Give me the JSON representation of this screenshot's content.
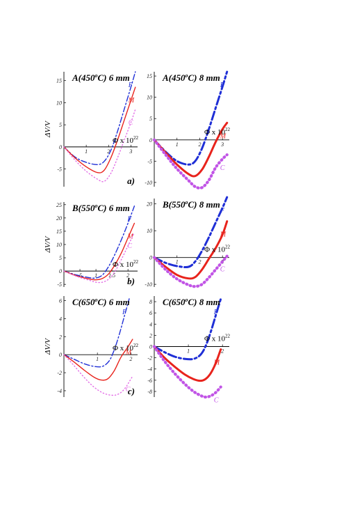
{
  "colors": {
    "F": "#1f2fd6",
    "M": "#e8231c",
    "C": "#e36ee6",
    "C_dotted": "#c155e6"
  },
  "x_axis_label": "Φ x 10",
  "x_axis_label_exp": "22",
  "chart_data": [
    {
      "type": "line",
      "row": "a)",
      "title_letter": "A",
      "title_temp": "450",
      "title_unit": "C) 6 mm",
      "ylabel": "ΔV/V",
      "xlim": [
        0,
        3.3
      ],
      "ylim": [
        -9,
        17
      ],
      "xticks": [
        1,
        2,
        3
      ],
      "yticks": [
        -5,
        0,
        5,
        10,
        15
      ],
      "series": [
        {
          "name": "F",
          "style": "dashdot",
          "x": [
            0,
            0.5,
            1,
            1.5,
            1.8,
            2.1,
            2.4,
            2.7,
            3.0,
            3.2
          ],
          "y": [
            0,
            -2.3,
            -3.5,
            -4,
            -3.3,
            -0.8,
            3.5,
            8.5,
            13.5,
            17
          ]
        },
        {
          "name": "M",
          "style": "solid",
          "x": [
            0,
            0.5,
            1,
            1.5,
            1.8,
            2.1,
            2.4,
            2.7,
            3.0,
            3.2
          ],
          "y": [
            0,
            -2.5,
            -4.5,
            -5.8,
            -5.3,
            -2.5,
            1.5,
            6,
            10.5,
            13.5
          ]
        },
        {
          "name": "C",
          "style": "dotted",
          "x": [
            0,
            0.5,
            1,
            1.5,
            1.8,
            2.1,
            2.4,
            2.7,
            3.0,
            3.2
          ],
          "y": [
            0,
            -3,
            -5.5,
            -7.3,
            -7.8,
            -6,
            -2.5,
            1.5,
            5.5,
            8.5
          ]
        }
      ]
    },
    {
      "type": "line",
      "row": "a)",
      "title_letter": "A",
      "title_temp": "450",
      "title_unit": "C) 8 mm",
      "ylabel": "",
      "xlim": [
        0,
        3.3
      ],
      "ylim": [
        -11,
        16
      ],
      "xticks": [
        1,
        2,
        3
      ],
      "yticks": [
        -10,
        -5,
        0,
        5,
        10,
        15
      ],
      "series": [
        {
          "name": "F",
          "style": "dashdot",
          "x": [
            0,
            0.5,
            1,
            1.5,
            1.8,
            2.1,
            2.4,
            2.7,
            3.0,
            3.2
          ],
          "y": [
            0,
            -2.8,
            -5,
            -5.8,
            -5,
            -2,
            2.5,
            7.5,
            12.5,
            16
          ]
        },
        {
          "name": "M",
          "style": "solid",
          "x": [
            0,
            0.5,
            1,
            1.5,
            1.8,
            2.1,
            2.4,
            2.7,
            3.0,
            3.2
          ],
          "y": [
            0,
            -3,
            -5.8,
            -8,
            -8.5,
            -7,
            -4,
            -0.5,
            2.5,
            4
          ]
        },
        {
          "name": "C",
          "style": "dotted",
          "x": [
            0,
            0.5,
            1,
            1.5,
            1.8,
            2.1,
            2.4,
            2.7,
            3.0,
            3.2
          ],
          "y": [
            0,
            -3.5,
            -6.8,
            -9.5,
            -11,
            -11.2,
            -9.5,
            -6.5,
            -4.5,
            -3.5
          ]
        }
      ]
    },
    {
      "type": "line",
      "row": "b)",
      "title_letter": "B",
      "title_temp": "550",
      "title_unit": "C) 6 mm",
      "ylabel": "ΔV/V",
      "xlim": [
        0,
        2.3
      ],
      "ylim": [
        -6,
        26
      ],
      "xticks": [
        0.5,
        1,
        1.5,
        2
      ],
      "xticklabels": [
        ".5",
        "1",
        "1.5",
        "2"
      ],
      "yticks": [
        -5,
        0,
        5,
        10,
        15,
        20,
        25
      ],
      "series": [
        {
          "name": "F",
          "style": "dashdot",
          "x": [
            0,
            0.4,
            0.8,
            1.0,
            1.2,
            1.4,
            1.6,
            1.8,
            2.0,
            2.2
          ],
          "y": [
            0,
            -1.5,
            -2.5,
            -2.6,
            -1.5,
            1.8,
            6.5,
            12,
            18,
            24.5
          ]
        },
        {
          "name": "M",
          "style": "solid",
          "x": [
            0,
            0.4,
            0.8,
            1.0,
            1.2,
            1.4,
            1.6,
            1.8,
            2.0,
            2.2
          ],
          "y": [
            0,
            -1.8,
            -3,
            -3.3,
            -2.8,
            -1,
            2.5,
            7,
            12.5,
            18
          ]
        },
        {
          "name": "C",
          "style": "dotted",
          "x": [
            0,
            0.4,
            0.8,
            1.0,
            1.2,
            1.4,
            1.6,
            1.8,
            2.0,
            2.2
          ],
          "y": [
            0,
            -2,
            -3.5,
            -4.2,
            -4.2,
            -3,
            0,
            4.5,
            9.5,
            14.5
          ]
        }
      ]
    },
    {
      "type": "line",
      "row": "b)",
      "title_letter": "B",
      "title_temp": "550",
      "title_unit": "C) 8 mm",
      "ylabel": "",
      "xlim": [
        0,
        3.3
      ],
      "ylim": [
        -11,
        22
      ],
      "xticks": [
        1,
        2,
        3
      ],
      "yticks": [
        -10,
        0,
        10,
        20
      ],
      "series": [
        {
          "name": "F",
          "style": "dashdot",
          "x": [
            0,
            0.5,
            1,
            1.5,
            1.8,
            2.1,
            2.4,
            2.7,
            3.0,
            3.2
          ],
          "y": [
            0,
            -2,
            -3.2,
            -3.5,
            -1.5,
            2.5,
            7.5,
            13,
            18.5,
            22.5
          ]
        },
        {
          "name": "M",
          "style": "solid",
          "x": [
            0,
            0.5,
            1,
            1.5,
            1.8,
            2.1,
            2.4,
            2.7,
            3.0,
            3.2
          ],
          "y": [
            0,
            -3.5,
            -6.5,
            -7.8,
            -7.3,
            -4.5,
            -0.5,
            3.5,
            8.5,
            13.5
          ]
        },
        {
          "name": "C",
          "style": "dotted",
          "x": [
            0,
            0.5,
            1,
            1.5,
            1.8,
            2.1,
            2.4,
            2.7,
            3.0,
            3.2
          ],
          "y": [
            0,
            -4.5,
            -8,
            -10.2,
            -10.8,
            -10,
            -7.5,
            -4.5,
            -1.5,
            0.5
          ]
        }
      ]
    },
    {
      "type": "line",
      "row": "c)",
      "title_letter": "C",
      "title_temp": "650",
      "title_unit": "C) 6 mm",
      "ylabel": "ΔV/V",
      "xlim": [
        0,
        2.2
      ],
      "ylim": [
        -4.7,
        6.5
      ],
      "xticks": [
        1,
        2
      ],
      "yticks": [
        -4,
        -2,
        0,
        2,
        4,
        6
      ],
      "series": [
        {
          "name": "F",
          "style": "dashdot",
          "x": [
            0,
            0.3,
            0.6,
            0.9,
            1.15,
            1.35,
            1.5,
            1.65,
            1.8,
            1.95
          ],
          "y": [
            0,
            -0.5,
            -1,
            -1.3,
            -1.3,
            -0.7,
            0.5,
            2.2,
            4.2,
            6.2
          ]
        },
        {
          "name": "M",
          "style": "solid",
          "x": [
            0,
            0.3,
            0.6,
            0.9,
            1.1,
            1.3,
            1.5,
            1.7,
            1.9,
            2.05
          ],
          "y": [
            0,
            -0.8,
            -1.7,
            -2.5,
            -2.8,
            -2.7,
            -1.8,
            -0.3,
            0.8,
            1.7
          ]
        },
        {
          "name": "C",
          "style": "dotted",
          "x": [
            0,
            0.3,
            0.6,
            0.9,
            1.2,
            1.5,
            1.7,
            1.85,
            1.95,
            2.05
          ],
          "y": [
            0,
            -1.2,
            -2.5,
            -3.6,
            -4.3,
            -4.5,
            -4.2,
            -3.6,
            -3.0,
            -2.4
          ]
        }
      ]
    },
    {
      "type": "line",
      "row": "c)",
      "title_letter": "C",
      "title_temp": "650",
      "title_unit": "C) 8 mm",
      "ylabel": "",
      "xlim": [
        0,
        2.2
      ],
      "ylim": [
        -9,
        9
      ],
      "xticks": [
        1,
        2
      ],
      "yticks": [
        -8,
        -6,
        -4,
        -2,
        0,
        2,
        4,
        6,
        8
      ],
      "series": [
        {
          "name": "F",
          "style": "dashdot",
          "x": [
            0,
            0.3,
            0.6,
            0.9,
            1.15,
            1.35,
            1.5,
            1.65,
            1.8,
            1.95
          ],
          "y": [
            0,
            -1,
            -1.8,
            -2.2,
            -2.2,
            -1.5,
            0,
            2.5,
            5.5,
            8.5
          ]
        },
        {
          "name": "M",
          "style": "solid",
          "x": [
            0,
            0.3,
            0.6,
            0.9,
            1.15,
            1.35,
            1.5,
            1.65,
            1.8,
            1.95
          ],
          "y": [
            0,
            -2,
            -3.6,
            -5,
            -5.8,
            -6.1,
            -5.8,
            -4.8,
            -3,
            -0.5
          ]
        },
        {
          "name": "C",
          "style": "dotted",
          "x": [
            0,
            0.3,
            0.6,
            0.9,
            1.15,
            1.35,
            1.5,
            1.65,
            1.8,
            1.95
          ],
          "y": [
            0,
            -2.6,
            -4.8,
            -6.7,
            -8,
            -8.7,
            -9,
            -8.8,
            -8.2,
            -7.2
          ]
        }
      ]
    }
  ]
}
